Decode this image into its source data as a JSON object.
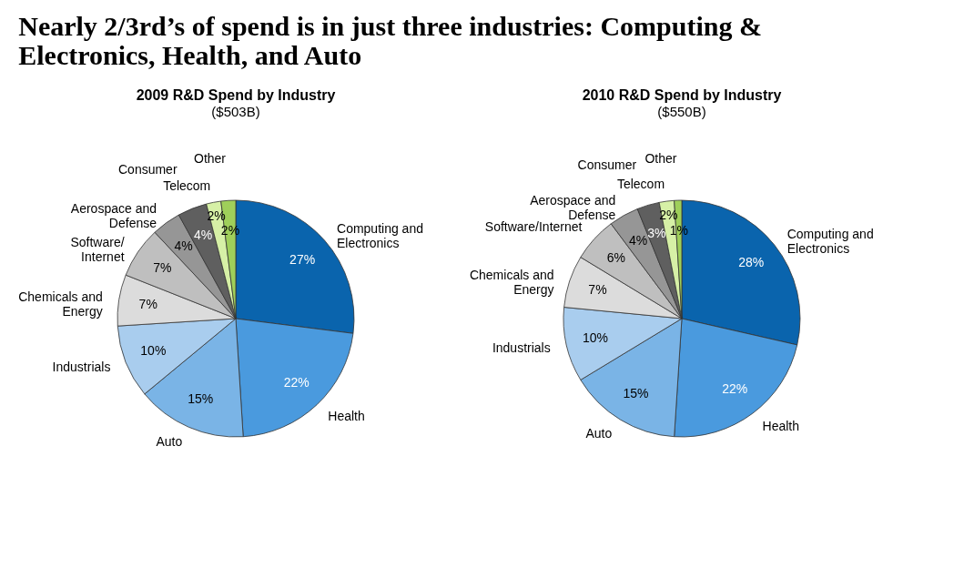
{
  "chart_data": [
    {
      "type": "other",
      "title": "Nearly 2/3rd’s of spend is in just three industries:  Computing & Electronics, Health, and Auto"
    },
    {
      "type": "pie",
      "title": "2009 R&D Spend by Industry",
      "subtitle": "($503B)",
      "categories": [
        "Computing and Electronics",
        "Health",
        "Auto",
        "Industrials",
        "Chemicals and Energy",
        "Software/ Internet",
        "Aerospace and Defense",
        "Consumer",
        "Telecom",
        "Other"
      ],
      "values": [
        27,
        22,
        15,
        10,
        7,
        7,
        4,
        4,
        2,
        2
      ],
      "value_labels": [
        "27%",
        "22%",
        "15%",
        "10%",
        "7%",
        "7%",
        "4%",
        "4%",
        "2%",
        "2%"
      ],
      "colors": [
        "#0a64ad",
        "#4a9ade",
        "#7ab4e6",
        "#a9cdee",
        "#dcdcdc",
        "#bfbfbf",
        "#969696",
        "#5f5f5f",
        "#d6f0a6",
        "#9fcf5a"
      ]
    },
    {
      "type": "pie",
      "title": "2010 R&D Spend by Industry",
      "subtitle": "($550B)",
      "categories": [
        "Computing and Electronics",
        "Health",
        "Auto",
        "Industrials",
        "Chemicals and Energy",
        "Software/Internet",
        "Aerospace and Defense",
        "Consumer",
        "Telecom",
        "Other"
      ],
      "values": [
        28,
        22,
        15,
        10,
        7,
        6,
        4,
        3,
        2,
        1
      ],
      "value_labels": [
        "28%",
        "22%",
        "15%",
        "10%",
        "7%",
        "6%",
        "4%",
        "3%",
        "2%",
        "1%"
      ],
      "colors": [
        "#0a64ad",
        "#4a9ade",
        "#7ab4e6",
        "#a9cdee",
        "#dcdcdc",
        "#bfbfbf",
        "#969696",
        "#5f5f5f",
        "#d6f0a6",
        "#9fcf5a"
      ]
    }
  ]
}
